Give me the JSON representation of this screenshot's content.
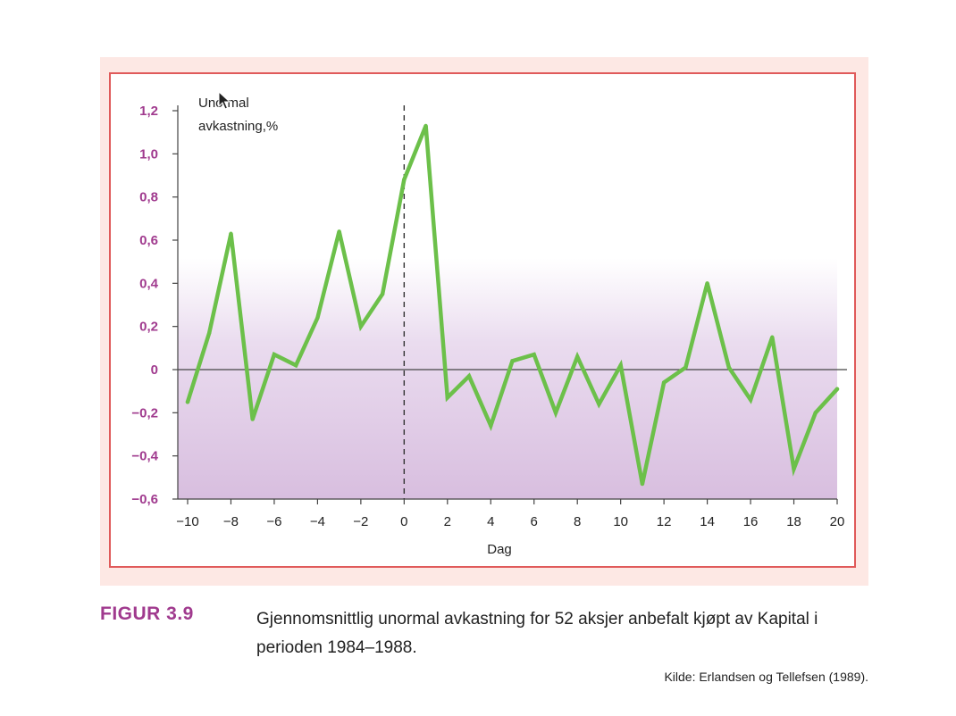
{
  "chart_data": {
    "type": "line",
    "ylabel_lines": [
      "Unormal",
      "avkastning,%"
    ],
    "xlabel": "Dag",
    "xlim": [
      -10,
      20
    ],
    "ylim": [
      -0.6,
      1.2
    ],
    "x_ticks": [
      {
        "value": -10,
        "label": "−10"
      },
      {
        "value": -8,
        "label": "−8"
      },
      {
        "value": -6,
        "label": "−6"
      },
      {
        "value": -4,
        "label": "−4"
      },
      {
        "value": -2,
        "label": "−2"
      },
      {
        "value": 0,
        "label": "0"
      },
      {
        "value": 2,
        "label": "2"
      },
      {
        "value": 4,
        "label": "4"
      },
      {
        "value": 6,
        "label": "6"
      },
      {
        "value": 8,
        "label": "8"
      },
      {
        "value": 10,
        "label": "10"
      },
      {
        "value": 12,
        "label": "12"
      },
      {
        "value": 14,
        "label": "14"
      },
      {
        "value": 16,
        "label": "16"
      },
      {
        "value": 18,
        "label": "18"
      },
      {
        "value": 20,
        "label": "20"
      }
    ],
    "y_ticks": [
      {
        "value": 1.2,
        "label": "1,2"
      },
      {
        "value": 1.0,
        "label": "1,0"
      },
      {
        "value": 0.8,
        "label": "0,8"
      },
      {
        "value": 0.6,
        "label": "0,6"
      },
      {
        "value": 0.4,
        "label": "0,4"
      },
      {
        "value": 0.2,
        "label": "0,2"
      },
      {
        "value": 0,
        "label": "0"
      },
      {
        "value": -0.2,
        "label": "−0,2"
      },
      {
        "value": -0.4,
        "label": "−0,4"
      },
      {
        "value": -0.6,
        "label": "−0,6"
      }
    ],
    "event_day": 0,
    "baseline": 0,
    "grid": false,
    "x": [
      -10,
      -9,
      -8,
      -7,
      -6,
      -5,
      -4,
      -3,
      -2,
      -1,
      0,
      1,
      2,
      3,
      4,
      5,
      6,
      7,
      8,
      9,
      10,
      11,
      12,
      13,
      14,
      15,
      16,
      17,
      18,
      19,
      20
    ],
    "y": [
      -0.15,
      0.17,
      0.63,
      -0.23,
      0.07,
      0.02,
      0.24,
      0.64,
      0.2,
      0.35,
      0.88,
      1.13,
      -0.13,
      -0.03,
      -0.26,
      0.04,
      0.07,
      -0.2,
      0.06,
      -0.16,
      0.02,
      -0.53,
      -0.06,
      0.01,
      0.4,
      0.01,
      -0.14,
      0.15,
      -0.46,
      -0.2,
      -0.09
    ]
  },
  "colors": {
    "line": "#6cc04a",
    "accent": "#a03a8e",
    "frame": "#e05a5a",
    "panel": "#fde8e4",
    "band": "#d8bedf"
  },
  "figure": {
    "label": "FIGUR 3.9",
    "caption": "Gjennomsnittlig unormal avkastning for 52 aksjer anbefalt kjøpt av Kapital i perioden 1984–1988.",
    "source": "Kilde: Erlandsen og Tellefsen (1989)."
  }
}
